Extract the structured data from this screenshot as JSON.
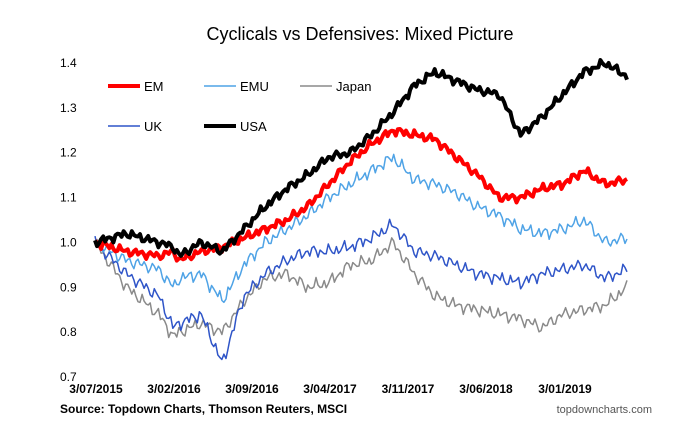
{
  "chart_data": {
    "type": "line",
    "title": "Cyclicals vs Defensives: Mixed Picture",
    "xlabel": "",
    "ylabel": "",
    "ylim": [
      0.7,
      1.4
    ],
    "yticks": [
      "0.7",
      "0.8",
      "0.9",
      "1.0",
      "1.1",
      "1.2",
      "1.3",
      "1.4"
    ],
    "xticks": [
      "3/07/2015",
      "3/02/2016",
      "3/09/2016",
      "3/04/2017",
      "3/11/2017",
      "3/06/2018",
      "3/01/2019"
    ],
    "x_dates": [
      "2015-07-03",
      "2015-10-01",
      "2016-01-01",
      "2016-02-12",
      "2016-03-01",
      "2016-05-01",
      "2016-07-01",
      "2016-09-01",
      "2016-11-01",
      "2017-01-01",
      "2017-03-01",
      "2017-05-01",
      "2017-07-01",
      "2017-09-01",
      "2017-11-01",
      "2018-01-01",
      "2018-03-01",
      "2018-05-01",
      "2018-07-01",
      "2018-09-01",
      "2018-11-01",
      "2019-01-01",
      "2019-03-01",
      "2019-05-01",
      "2019-07-01",
      "2019-09-01"
    ],
    "grid": false,
    "legend": "top-left",
    "series": [
      {
        "name": "EM",
        "color": "#ff0000",
        "width": 4,
        "values": [
          1.0,
          0.98,
          0.97,
          0.98,
          0.96,
          0.98,
          0.99,
          1.01,
          1.03,
          1.05,
          1.08,
          1.13,
          1.18,
          1.22,
          1.25,
          1.24,
          1.23,
          1.19,
          1.15,
          1.1,
          1.1,
          1.12,
          1.13,
          1.16,
          1.13,
          1.14
        ]
      },
      {
        "name": "EMU",
        "color": "#4fa3e6",
        "width": 1.5,
        "values": [
          1.0,
          0.96,
          0.94,
          0.9,
          0.92,
          0.93,
          0.87,
          0.95,
          1.0,
          1.03,
          1.06,
          1.1,
          1.13,
          1.16,
          1.19,
          1.14,
          1.13,
          1.11,
          1.08,
          1.06,
          1.03,
          1.02,
          1.03,
          1.05,
          1.0,
          1.01
        ]
      },
      {
        "name": "Japan",
        "color": "#8a8a8a",
        "width": 1.5,
        "values": [
          1.0,
          0.9,
          0.84,
          0.79,
          0.8,
          0.82,
          0.8,
          0.87,
          0.92,
          0.93,
          0.9,
          0.91,
          0.95,
          0.96,
          1.0,
          0.93,
          0.88,
          0.86,
          0.85,
          0.84,
          0.83,
          0.81,
          0.84,
          0.85,
          0.86,
          0.9
        ]
      },
      {
        "name": "UK",
        "color": "#2f55c8",
        "width": 1.5,
        "values": [
          1.0,
          0.93,
          0.88,
          0.81,
          0.82,
          0.84,
          0.73,
          0.88,
          0.93,
          0.96,
          0.98,
          0.98,
          0.99,
          1.01,
          1.04,
          0.98,
          0.97,
          0.95,
          0.93,
          0.92,
          0.91,
          0.93,
          0.94,
          0.95,
          0.92,
          0.94
        ]
      },
      {
        "name": "USA",
        "color": "#000000",
        "width": 4,
        "values": [
          1.0,
          1.02,
          1.0,
          0.99,
          0.97,
          1.0,
          0.98,
          1.03,
          1.08,
          1.12,
          1.15,
          1.19,
          1.2,
          1.24,
          1.29,
          1.35,
          1.38,
          1.36,
          1.34,
          1.33,
          1.24,
          1.28,
          1.33,
          1.38,
          1.4,
          1.37
        ]
      }
    ],
    "source": "Source: Topdown Charts, Thomson Reuters, MSCI",
    "credit": "topdowncharts.com"
  }
}
